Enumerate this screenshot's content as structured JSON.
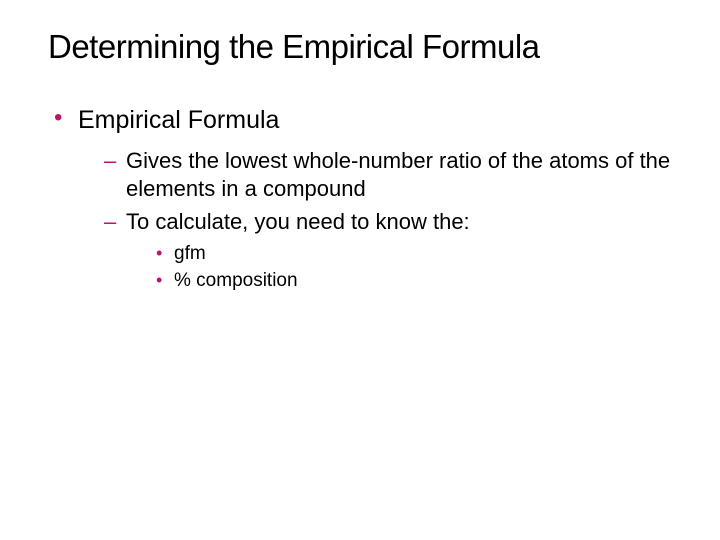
{
  "title": "Determining the Empirical Formula",
  "colors": {
    "bullet": "#bd146b",
    "text": "#000000",
    "background": "#ffffff"
  },
  "typography": {
    "title_fontsize": 33,
    "level1_fontsize": 25,
    "level2_fontsize": 22,
    "level3_fontsize": 19,
    "font_family": "Verdana"
  },
  "bullets": {
    "level1": {
      "item0": "Empirical Formula"
    },
    "level2": {
      "item0": "Gives the lowest whole-number ratio of the atoms of the elements in a compound",
      "item1": "To calculate, you need to know the:"
    },
    "level3": {
      "item0": "gfm",
      "item1": "% composition"
    }
  }
}
